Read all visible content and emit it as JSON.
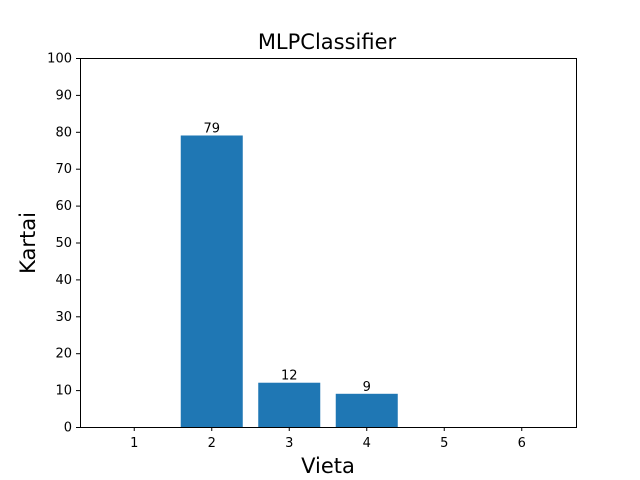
{
  "chart_data": {
    "type": "bar",
    "title": "MLPClassifier",
    "xlabel": "Vieta",
    "ylabel": "Kartai",
    "categories": [
      "1",
      "2",
      "3",
      "4",
      "5",
      "6"
    ],
    "values": [
      0,
      79,
      12,
      9,
      0,
      0
    ],
    "data_labels": [
      "",
      "79",
      "12",
      "9",
      "",
      ""
    ],
    "yticks": [
      "0",
      "10",
      "20",
      "30",
      "40",
      "50",
      "60",
      "70",
      "80",
      "90",
      "100"
    ],
    "ylim": [
      0,
      100
    ],
    "grid": false,
    "bar_color": "#1f77b4"
  }
}
